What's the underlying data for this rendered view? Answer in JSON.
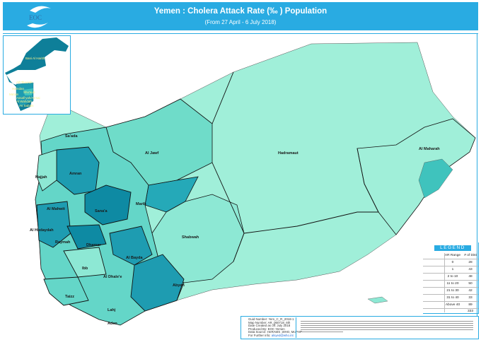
{
  "header": {
    "title": "Yemen : Cholera Attack Rate (‰ ) Population",
    "subtitle": "(From 27 April - 6 July 2018)",
    "logo_text": "EOC",
    "color": "#29abe2"
  },
  "colors": {
    "ar_0": "#a0efd9",
    "ar_low": "#8de8d4",
    "ar_mid": "#64d6c8",
    "ar_high": "#25a9b8",
    "ar_top": "#0e8aa3",
    "boundary": "#111111"
  },
  "map_labels": [
    "Sa'ada",
    "Al Jawf",
    "Hadramaut",
    "Al Maharah",
    "Hajjah",
    "Amran",
    "Al Mahwit",
    "Sana'a",
    "Marib",
    "Al Hudaydah",
    "Raymah",
    "Dhamar",
    "Shabwah",
    "Al Bayda",
    "Ibb",
    "Al Dhale'e",
    "Abyan",
    "Taizz",
    "Lahj",
    "Aden"
  ],
  "inset_labels": [
    "Bani Al Harith",
    "Ath'thaorah",
    "Hamdan",
    "Shu'aub",
    "Ma'ain",
    "Assafi'yah/As'sai",
    "Al Wahdah",
    "As Sabain"
  ],
  "legend": {
    "title": "LEGEND",
    "col_range": "AR Range",
    "col_count": "# of Dist",
    "rows": [
      {
        "range": "0",
        "count": "28"
      },
      {
        "range": "1",
        "count": "43"
      },
      {
        "range": "2 to 10",
        "count": "48"
      },
      {
        "range": "11 to 20",
        "count": "50"
      },
      {
        "range": "21 to 30",
        "count": "42"
      },
      {
        "range": "31 to 40",
        "count": "33"
      },
      {
        "range": "Above 40",
        "count": "89"
      }
    ],
    "total": "333"
  },
  "info": {
    "guid": "Guid Number: Yem_C_R_2018-1",
    "map_number": "Map Number:   AR_060718_6th",
    "date": "Date Created as off: July 2018",
    "produced": "Produced By: EOC Yemen",
    "source": "Data Source: HeRAMS ,WHO, MoPHP",
    "further_label": "For Further info:",
    "further_link": "alsyed@who.int"
  }
}
